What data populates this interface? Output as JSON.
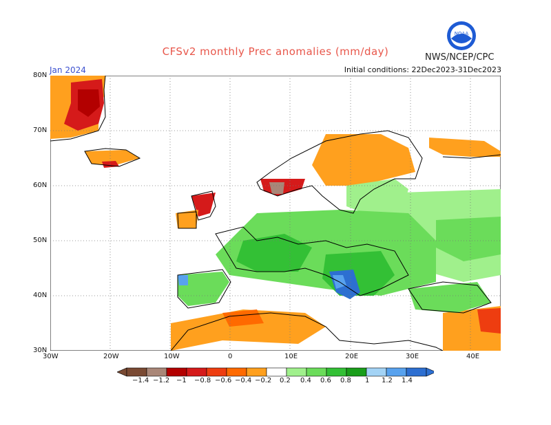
{
  "header": {
    "title": "CFSv2 monthly Prec anomalies (mm/day)",
    "agency": "NWS/NCEP/CPC",
    "logo_text": "NOAA",
    "month": "Jan 2024",
    "initial_conditions": "Initial conditions: 22Dec2023-31Dec2023"
  },
  "map": {
    "lat_labels": [
      "80N",
      "70N",
      "60N",
      "50N",
      "40N",
      "30N"
    ],
    "lon_labels": [
      "30W",
      "20W",
      "10W",
      "0",
      "10E",
      "20E",
      "30E",
      "40E"
    ],
    "grid": "dotted",
    "colors": {
      "dry_strong": "#7a4a33",
      "dry_mod": "#a98677",
      "red_dark": "#b30000",
      "red": "#d51a1a",
      "red_orange": "#ee3d10",
      "orange_red": "#ff6a00",
      "orange": "#ffa01e",
      "green_light": "#a0f08c",
      "green_mid": "#6bdc5a",
      "green": "#33c035",
      "green_dark": "#199e1a",
      "blue_light": "#a3d3f5",
      "blue": "#58a2ee",
      "blue_dark": "#2d6fd1"
    }
  },
  "colorbar": {
    "labels": [
      "−1.4",
      "−1.2",
      "−1",
      "−0.8",
      "−0.6",
      "−0.4",
      "−0.2",
      "0.2",
      "0.4",
      "0.6",
      "0.8",
      "1",
      "1.2",
      "1.4"
    ],
    "colors": [
      "#7a4a33",
      "#a98677",
      "#b30000",
      "#d51a1a",
      "#ee3d10",
      "#ff6a00",
      "#ffa01e",
      "#ffffff",
      "#a0f08c",
      "#6bdc5a",
      "#33c035",
      "#199e1a",
      "#a3d3f5",
      "#58a2ee",
      "#2d6fd1"
    ]
  }
}
